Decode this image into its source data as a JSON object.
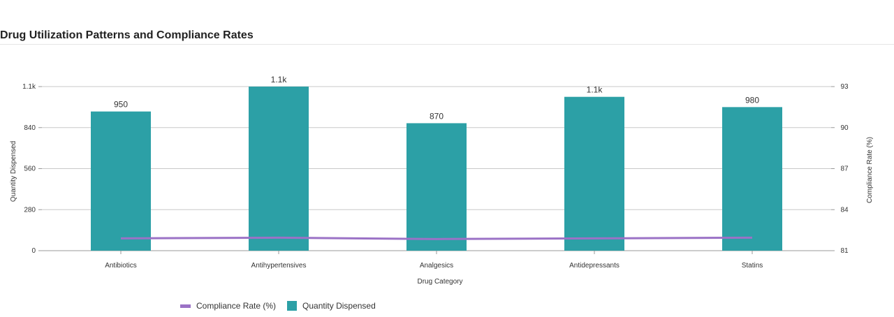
{
  "page": {
    "title": "Drug Utilization Patterns and Compliance Rates"
  },
  "chart_data": {
    "type": "bar",
    "title": "Drug Utilization Patterns and Compliance Rates",
    "xlabel": "Drug Category",
    "ylabel": "Quantity Dispensed",
    "y2label": "Compliance Rate (%)",
    "categories": [
      "Antibiotics",
      "Antihypertensives",
      "Analgesics",
      "Antidepressants",
      "Statins"
    ],
    "series": [
      {
        "name": "Quantity Dispensed",
        "type": "bar",
        "axis": "left",
        "color": "#2ca0a6",
        "values": [
          950,
          1120,
          870,
          1050,
          980
        ],
        "labels": [
          "950",
          "1.1k",
          "870",
          "1.1k",
          "980"
        ]
      },
      {
        "name": "Compliance Rate (%)",
        "type": "line",
        "axis": "right",
        "color": "#9b72c6",
        "values": [
          81.9,
          81.95,
          81.85,
          81.9,
          81.95
        ]
      }
    ],
    "ylim": [
      0,
      1120
    ],
    "yticks": [
      0,
      280,
      560,
      840,
      1120
    ],
    "ytick_labels": [
      "0",
      "280",
      "560",
      "840",
      "1.1k"
    ],
    "y2lim": [
      81,
      93
    ],
    "y2ticks": [
      81,
      84,
      87,
      90,
      93
    ],
    "y2tick_labels": [
      "81",
      "84",
      "87",
      "90",
      "93"
    ],
    "grid": true,
    "legend_position": "bottom-left"
  }
}
